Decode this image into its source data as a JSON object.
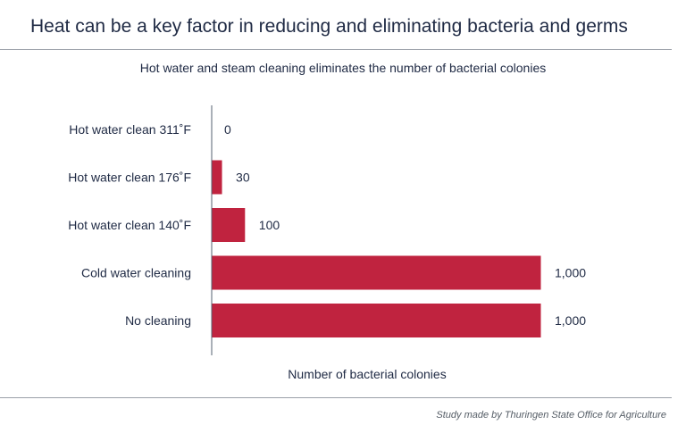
{
  "title": "Heat can be a key factor in reducing and eliminating bacteria and germs",
  "source_note": "Study made by Thuringen State Office for Agriculture",
  "colors": {
    "bar": "#c0233f",
    "text": "#1f2a44",
    "axis": "#556070"
  },
  "chart_data": {
    "type": "bar",
    "orientation": "horizontal",
    "title": "Hot water and steam cleaning eliminates the number of bacterial colonies",
    "xlabel": "Number of bacterial colonies",
    "ylabel": "",
    "categories": [
      "Hot water clean 311˚F",
      "Hot water clean 176˚F",
      "Hot water clean 140˚F",
      "Cold water cleaning",
      "No cleaning"
    ],
    "values": [
      0,
      30,
      100,
      1000,
      1000
    ],
    "value_labels": [
      "0",
      "30",
      "100",
      "1,000",
      "1,000"
    ],
    "xlim": [
      0,
      1000
    ],
    "grid": false,
    "legend": "none"
  }
}
